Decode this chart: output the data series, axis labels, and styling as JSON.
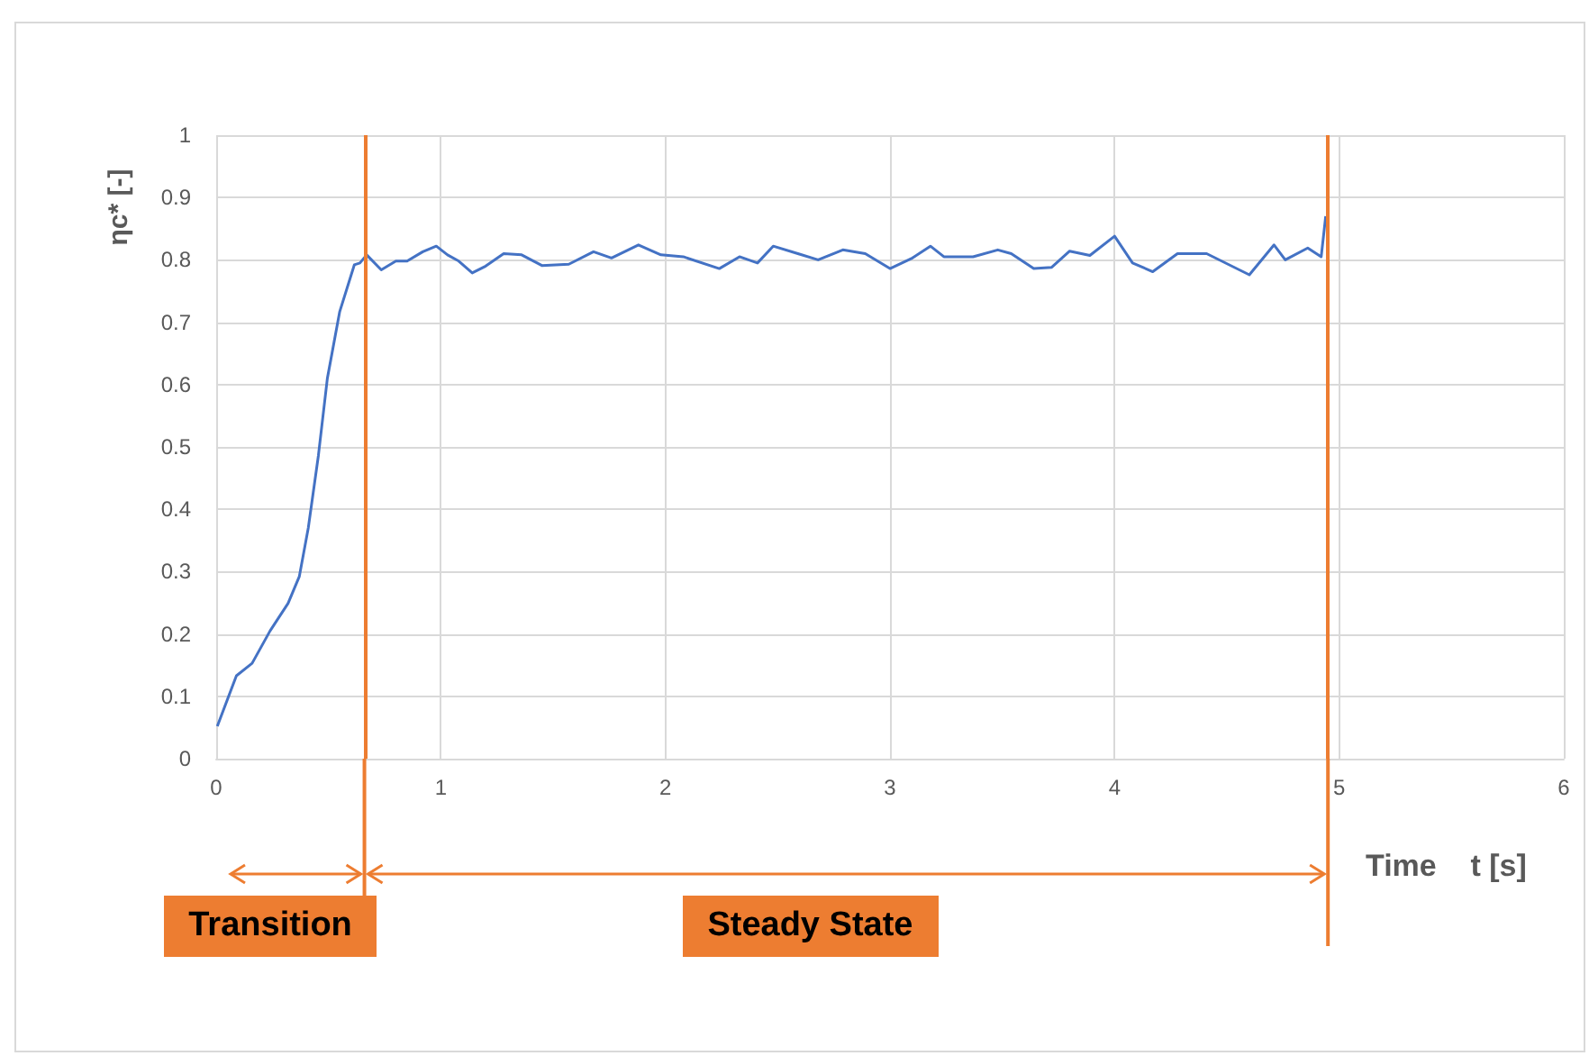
{
  "chart_data": {
    "type": "line",
    "xlabel": "Time    t [s]",
    "ylabel": "ηc* [-]",
    "x": [
      0.005,
      0.09,
      0.16,
      0.24,
      0.32,
      0.37,
      0.41,
      0.455,
      0.495,
      0.55,
      0.615,
      0.64,
      0.67,
      0.735,
      0.8,
      0.85,
      0.92,
      0.98,
      1.03,
      1.08,
      1.14,
      1.2,
      1.28,
      1.36,
      1.45,
      1.57,
      1.68,
      1.76,
      1.88,
      1.98,
      2.08,
      2.24,
      2.33,
      2.41,
      2.48,
      2.59,
      2.68,
      2.79,
      2.89,
      3.0,
      3.1,
      3.18,
      3.24,
      3.37,
      3.48,
      3.54,
      3.64,
      3.72,
      3.8,
      3.89,
      4.0,
      4.08,
      4.17,
      4.28,
      4.41,
      4.6,
      4.71,
      4.76,
      4.86,
      4.92,
      4.94
    ],
    "series": [
      {
        "color": "#4472c4",
        "values": [
          0.052,
          0.133,
          0.153,
          0.205,
          0.249,
          0.292,
          0.37,
          0.486,
          0.61,
          0.717,
          0.792,
          0.795,
          0.808,
          0.784,
          0.798,
          0.798,
          0.813,
          0.822,
          0.808,
          0.798,
          0.779,
          0.79,
          0.81,
          0.808,
          0.791,
          0.793,
          0.813,
          0.803,
          0.824,
          0.808,
          0.805,
          0.786,
          0.805,
          0.795,
          0.822,
          0.81,
          0.8,
          0.816,
          0.81,
          0.786,
          0.803,
          0.822,
          0.805,
          0.805,
          0.816,
          0.81,
          0.786,
          0.788,
          0.814,
          0.807,
          0.838,
          0.795,
          0.781,
          0.81,
          0.81,
          0.776,
          0.824,
          0.8,
          0.819,
          0.805,
          0.87
        ]
      }
    ],
    "xlim": [
      0,
      6
    ],
    "xticks": [
      0,
      1,
      2,
      3,
      4,
      5,
      6
    ],
    "ylim": [
      0,
      1
    ],
    "yticks": [
      0,
      0.1,
      0.2,
      0.3,
      0.4,
      0.5,
      0.6,
      0.7,
      0.8,
      0.9,
      1
    ],
    "grid": true,
    "marker": "none",
    "line_style": "solid",
    "ref_lines": [
      {
        "axis": "x",
        "value": 0.66,
        "color": "#ed7d31"
      },
      {
        "axis": "x",
        "value": 4.95,
        "color": "#ed7d31"
      }
    ],
    "annotations": [
      "Transition",
      "Steady State"
    ]
  }
}
